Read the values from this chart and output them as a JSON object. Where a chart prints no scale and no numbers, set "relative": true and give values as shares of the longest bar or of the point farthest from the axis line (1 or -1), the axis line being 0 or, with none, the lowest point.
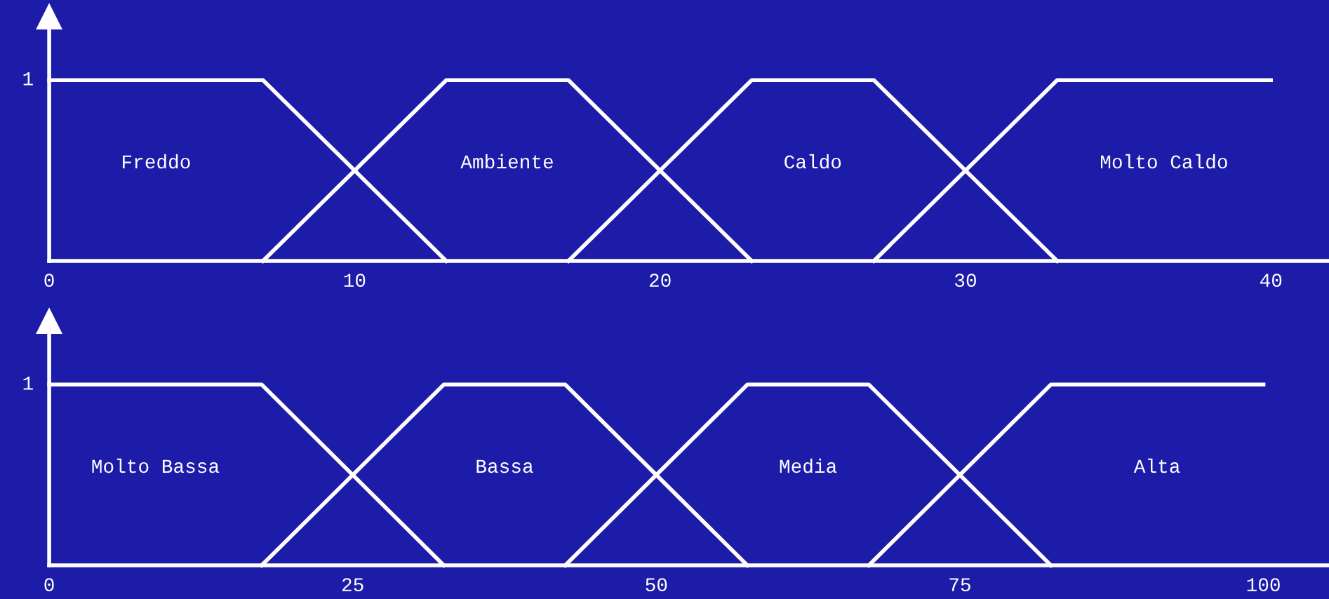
{
  "chart_data": [
    {
      "type": "line",
      "xlim": [
        0,
        41.9
      ],
      "xticks": [
        0,
        10,
        20,
        30,
        40
      ],
      "relative": true,
      "grid": false,
      "legend": false,
      "marker": "none",
      "line_style": "solid",
      "annotations": [
        "1",
        "Freddo",
        "Ambiente",
        "Caldo",
        "Molto Caldo"
      ],
      "series": [
        {
          "color": "#ffffff",
          "x": [
            0,
            7,
            13
          ],
          "values": [
            1,
            1,
            0
          ]
        },
        {
          "color": "#ffffff",
          "x": [
            7,
            13,
            17,
            23
          ],
          "values": [
            0,
            1,
            1,
            0
          ]
        },
        {
          "color": "#ffffff",
          "x": [
            17,
            23,
            27,
            33
          ],
          "values": [
            0,
            1,
            1,
            0
          ]
        },
        {
          "color": "#ffffff",
          "x": [
            27,
            33,
            40
          ],
          "values": [
            0,
            1,
            1
          ]
        }
      ]
    },
    {
      "type": "line",
      "xlim": [
        0,
        105.4
      ],
      "xticks": [
        0,
        25,
        50,
        75,
        100
      ],
      "relative": true,
      "grid": false,
      "legend": false,
      "marker": "none",
      "line_style": "solid",
      "annotations": [
        "1",
        "Molto Bassa",
        "Bassa",
        "Media",
        "Alta"
      ],
      "series": [
        {
          "color": "#ffffff",
          "x": [
            0,
            17.5,
            32.5
          ],
          "values": [
            1,
            1,
            0
          ]
        },
        {
          "color": "#ffffff",
          "x": [
            17.5,
            32.5,
            42.5,
            57.5
          ],
          "values": [
            0,
            1,
            1,
            0
          ]
        },
        {
          "color": "#ffffff",
          "x": [
            42.5,
            57.5,
            67.5,
            82.5
          ],
          "values": [
            0,
            1,
            1,
            0
          ]
        },
        {
          "color": "#ffffff",
          "x": [
            67.5,
            82.5,
            100
          ],
          "values": [
            0,
            1,
            1
          ]
        }
      ]
    }
  ]
}
